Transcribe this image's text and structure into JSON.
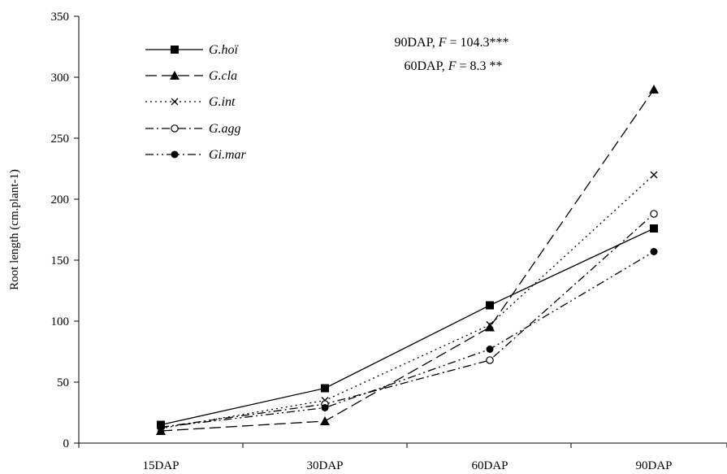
{
  "chart_data": {
    "type": "line",
    "categories": [
      "15DAP",
      "30DAP",
      "60DAP",
      "90DAP"
    ],
    "ylabel": "Root length (cm.plant-1)",
    "xlabel": "",
    "ylim": [
      0,
      350
    ],
    "yticks": [
      0,
      50,
      100,
      150,
      200,
      250,
      300,
      350
    ],
    "grid": false,
    "legend_position": "top-left",
    "annotations": [
      {
        "text": "90DAP, ",
        "stat": "F",
        "rest": " = 104.3***"
      },
      {
        "text": "60DAP, ",
        "stat": "F",
        "rest": " = 8.3 **"
      }
    ],
    "series": [
      {
        "name": "G.hoï",
        "values": [
          15,
          45,
          113,
          176
        ],
        "marker": "square-filled",
        "dash": "solid"
      },
      {
        "name": "G.cla",
        "values": [
          10,
          18,
          95,
          290
        ],
        "marker": "triangle-filled",
        "dash": "long-dash"
      },
      {
        "name": "G.int",
        "values": [
          12,
          35,
          97,
          220
        ],
        "marker": "x",
        "dash": "dotted"
      },
      {
        "name": "G.agg",
        "values": [
          13,
          32,
          68,
          188
        ],
        "marker": "circle-open",
        "dash": "dash-dot"
      },
      {
        "name": "Gi.mar",
        "values": [
          13,
          29,
          77,
          157
        ],
        "marker": "circle-filled",
        "dash": "dash-dot-dot"
      }
    ]
  }
}
